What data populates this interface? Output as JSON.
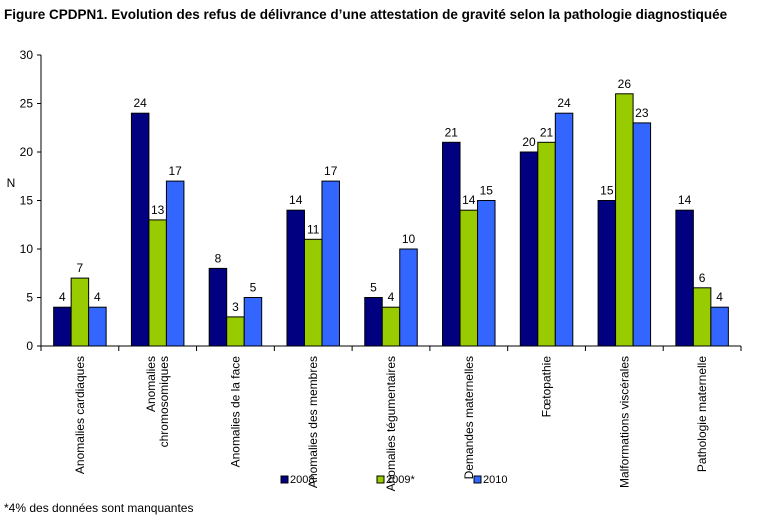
{
  "title": "Figure CPDPN1. Evolution des refus de délivrance d’une attestation de gravité selon la pathologie diagnostiquée",
  "footnote": "*4% des données sont manquantes",
  "chart_data": {
    "type": "bar",
    "ylabel": "N",
    "xlabel": "",
    "ylim": [
      0,
      30
    ],
    "yticks": [
      0,
      5,
      10,
      15,
      20,
      25,
      30
    ],
    "grid": false,
    "legend_position": "bottom",
    "categories": [
      [
        "Anomalies cardiaques"
      ],
      [
        "Anomalies",
        "chromosomiques"
      ],
      [
        "Anomalies de la face"
      ],
      [
        "Anomalies des membres"
      ],
      [
        "Anomalies tégumentaires"
      ],
      [
        "Demandes maternelles"
      ],
      [
        "Fœtopathie"
      ],
      [
        "Malformations viscérales"
      ],
      [
        "Pathologie maternelle"
      ]
    ],
    "series": [
      {
        "name": "2008",
        "color": "#000080",
        "values": [
          4,
          24,
          8,
          14,
          5,
          21,
          20,
          15,
          14
        ]
      },
      {
        "name": "2009*",
        "color": "#99CC00",
        "values": [
          7,
          13,
          3,
          11,
          4,
          14,
          21,
          26,
          6
        ]
      },
      {
        "name": "2010",
        "color": "#3366FF",
        "values": [
          4,
          17,
          5,
          17,
          10,
          15,
          24,
          23,
          4
        ]
      }
    ]
  }
}
